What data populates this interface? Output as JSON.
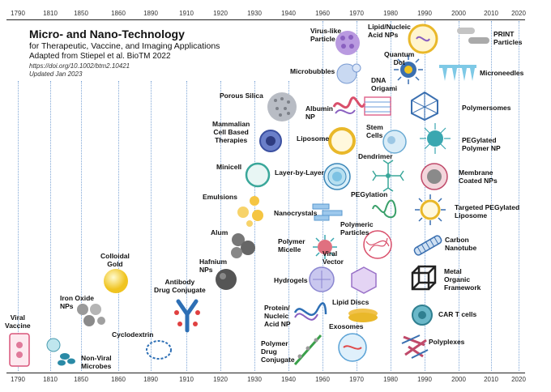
{
  "header": {
    "title": "Micro- and Nano-Technology",
    "subtitle": "for Therapeutic, Vaccine, and Imaging Applications",
    "citation": "Adapted from Stiepel et al. BioTM 2022",
    "doi": "https://doi.org/10.1002/btm2.10421",
    "updated": "Updated Jan 2023"
  },
  "timeline": {
    "ticks": [
      "1790",
      "1810",
      "1850",
      "1860",
      "1890",
      "1910",
      "1920",
      "1930",
      "1940",
      "1960",
      "1970",
      "1980",
      "1990",
      "2000",
      "2010",
      "2020"
    ]
  },
  "technologies": [
    {
      "id": "viral-vaccine",
      "label": "Viral\nVaccine"
    },
    {
      "id": "iron-oxide",
      "label": "Iron Oxide\nNPs"
    },
    {
      "id": "non-viral-microbes",
      "label": "Non-Viral\nMicrobes"
    },
    {
      "id": "colloidal-gold",
      "label": "Colloidal\nGold"
    },
    {
      "id": "cyclodextrin",
      "label": "Cyclodextrin"
    },
    {
      "id": "adc",
      "label": "Antibody\nDrug Conjugate"
    },
    {
      "id": "hafnium",
      "label": "Hafnium\nNPs"
    },
    {
      "id": "alum",
      "label": "Alum"
    },
    {
      "id": "emulsions",
      "label": "Emulsions"
    },
    {
      "id": "minicell",
      "label": "Minicell"
    },
    {
      "id": "mammalian-cell",
      "label": "Mammalian\nCell Based\nTherapies"
    },
    {
      "id": "porous-silica",
      "label": "Porous Silica"
    },
    {
      "id": "polymer-drug-conjugate",
      "label": "Polymer\nDrug\nConjugate"
    },
    {
      "id": "protein-nucleic",
      "label": "Protein/\nNucleic\nAcid NP"
    },
    {
      "id": "hydrogels",
      "label": "Hydrogels"
    },
    {
      "id": "polymer-micelle",
      "label": "Polymer\nMicelle"
    },
    {
      "id": "nanocrystals",
      "label": "Nanocrystals"
    },
    {
      "id": "layer-by-layer",
      "label": "Layer-by-Layer"
    },
    {
      "id": "liposome",
      "label": "Liposome"
    },
    {
      "id": "albumin",
      "label": "Albumin\nNP"
    },
    {
      "id": "microbubbles",
      "label": "Microbubbles"
    },
    {
      "id": "virus-like",
      "label": "Virus-like\nParticle"
    },
    {
      "id": "lipid-nucleic",
      "label": "Lipid/Nucleic\nAcid NPs"
    },
    {
      "id": "quantum-dot",
      "label": "Quantum\nDot"
    },
    {
      "id": "dna-origami",
      "label": "DNA\nOrigami"
    },
    {
      "id": "stem-cells",
      "label": "Stem\nCells"
    },
    {
      "id": "dendrimer",
      "label": "Dendrimer"
    },
    {
      "id": "pegylation",
      "label": "PEGylation"
    },
    {
      "id": "polymeric-particles",
      "label": "Polymeric\nParticles"
    },
    {
      "id": "viral-vector",
      "label": "Viral\nVector"
    },
    {
      "id": "lipid-discs",
      "label": "Lipid Discs"
    },
    {
      "id": "exosomes",
      "label": "Exosomes"
    },
    {
      "id": "print",
      "label": "PRINT\nParticles"
    },
    {
      "id": "microneedles",
      "label": "Microneedles"
    },
    {
      "id": "polymersomes",
      "label": "Polymersomes"
    },
    {
      "id": "pegylated-polymer",
      "label": "PEGylated\nPolymer NP"
    },
    {
      "id": "membrane-coated",
      "label": "Membrane\nCoated NPs"
    },
    {
      "id": "targeted-liposome",
      "label": "Targeted PEGylated\nLiposome"
    },
    {
      "id": "carbon-nanotube",
      "label": "Carbon\nNanotube"
    },
    {
      "id": "mof",
      "label": "Metal\nOrganic\nFramework"
    },
    {
      "id": "car-t",
      "label": "CAR T cells"
    },
    {
      "id": "polyplexes",
      "label": "Polyplexes"
    }
  ],
  "colors": {
    "grid": "#7fa6d6",
    "axis": "#222222",
    "accent": "#3a6fb0"
  }
}
